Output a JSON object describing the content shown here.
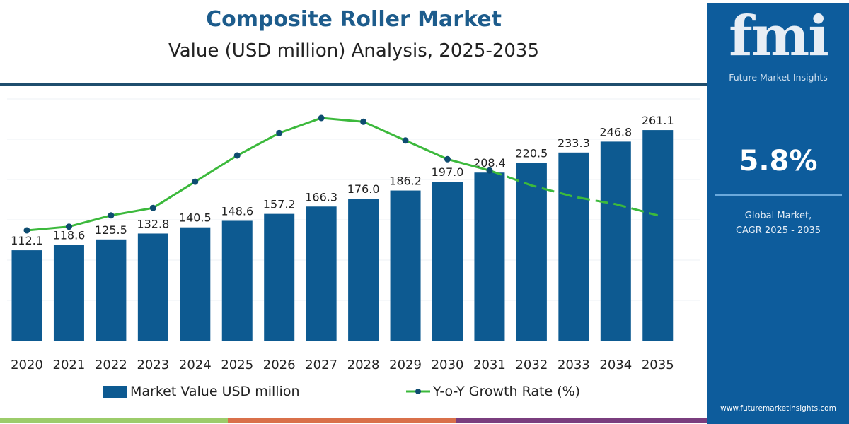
{
  "header": {
    "title": "Composite Roller Market",
    "subtitle": "Value (USD million) Analysis, 2025-2035"
  },
  "panel": {
    "logo": "fmi",
    "logo_sub": "Future Market Insights",
    "cagr": "5.8%",
    "cagr_label_1": "Global Market,",
    "cagr_label_2": "CAGR 2025 - 2035",
    "url": "www.futuremarketinsights.com"
  },
  "colors": {
    "bar": "#0d5a91",
    "line": "#3cb93c",
    "marker": "#0e4c70",
    "panel": "#0d5c9c",
    "title": "#1d5c8c",
    "stripes": [
      "#9ccc6a",
      "#d9704a",
      "#7a3d7e"
    ]
  },
  "chart_data": {
    "type": "bar+line",
    "categories": [
      "2020",
      "2021",
      "2022",
      "2023",
      "2024",
      "2025",
      "2026",
      "2027",
      "2028",
      "2029",
      "2030",
      "2031",
      "2032",
      "2033",
      "2034",
      "2035"
    ],
    "series": [
      {
        "name": "Market Value USD million",
        "type": "bar",
        "values": [
          112.1,
          118.6,
          125.5,
          132.8,
          140.5,
          148.6,
          157.2,
          166.3,
          176.0,
          186.2,
          197.0,
          208.4,
          220.5,
          233.3,
          246.8,
          261.1
        ],
        "value_labels": [
          "112.1",
          "118.6",
          "125.5",
          "132.8",
          "140.5",
          "148.6",
          "157.2",
          "166.3",
          "176.0",
          "186.2",
          "197.0",
          "208.4",
          "220.5",
          "233.3",
          "246.8",
          "261.1"
        ]
      },
      {
        "name": "Y-o-Y Growth Rate (%)",
        "type": "line",
        "values": [
          5.0,
          5.1,
          5.4,
          5.6,
          6.3,
          7.0,
          7.6,
          8.0,
          7.9,
          7.4,
          6.9,
          6.6,
          6.2,
          5.9,
          5.7,
          5.4
        ],
        "dashed_from": "2031"
      }
    ],
    "legend": "bottom",
    "grid": true,
    "y_axis_visible": false
  },
  "legend": {
    "bar": "Market Value USD million",
    "line": "Y-o-Y Growth Rate (%)"
  }
}
